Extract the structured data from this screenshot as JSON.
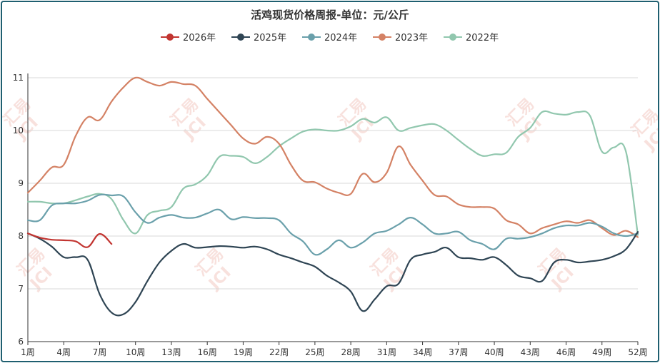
{
  "chart_data": {
    "type": "line",
    "title": "活鸡现货价格周报-单位：元/公斤",
    "ylim": [
      6,
      11
    ],
    "yticks": [
      6,
      7,
      8,
      9,
      10,
      11
    ],
    "xticks": [
      "1周",
      "4周",
      "7周",
      "10周",
      "13周",
      "16周",
      "19周",
      "22周",
      "25周",
      "28周",
      "31周",
      "34周",
      "37周",
      "40周",
      "43周",
      "46周",
      "49周",
      "52周"
    ],
    "x_categories_count": 52,
    "legend_position": "top-center",
    "grid": true,
    "series": [
      {
        "name": "2026年",
        "color": "#c23531",
        "values": [
          8.05,
          7.97,
          7.93,
          7.92,
          7.9,
          7.79,
          8.04,
          7.85
        ]
      },
      {
        "name": "2025年",
        "color": "#2f4554",
        "values": [
          8.05,
          7.95,
          7.8,
          7.6,
          7.6,
          7.55,
          6.9,
          6.55,
          6.52,
          6.75,
          7.15,
          7.5,
          7.72,
          7.85,
          7.78,
          7.79,
          7.81,
          7.8,
          7.78,
          7.8,
          7.75,
          7.65,
          7.58,
          7.5,
          7.42,
          7.25,
          7.12,
          6.95,
          6.58,
          6.8,
          7.05,
          7.1,
          7.55,
          7.65,
          7.7,
          7.78,
          7.6,
          7.58,
          7.55,
          7.6,
          7.45,
          7.25,
          7.2,
          7.15,
          7.5,
          7.55,
          7.5,
          7.52,
          7.55,
          7.62,
          7.75,
          8.08
        ]
      },
      {
        "name": "2024年",
        "color": "#6aa0ab",
        "values": [
          8.3,
          8.3,
          8.58,
          8.62,
          8.62,
          8.67,
          8.78,
          8.77,
          8.75,
          8.45,
          8.25,
          8.35,
          8.4,
          8.35,
          8.35,
          8.43,
          8.5,
          8.32,
          8.36,
          8.34,
          8.34,
          8.3,
          8.05,
          7.9,
          7.65,
          7.75,
          7.92,
          7.78,
          7.88,
          8.05,
          8.1,
          8.22,
          8.35,
          8.22,
          8.05,
          8.05,
          8.08,
          7.92,
          7.85,
          7.75,
          7.95,
          7.95,
          7.98,
          8.05,
          8.15,
          8.2,
          8.2,
          8.25,
          8.18,
          8.05,
          8.0,
          8.05
        ]
      },
      {
        "name": "2023年",
        "color": "#d48265",
        "values": [
          8.82,
          9.05,
          9.3,
          9.35,
          9.9,
          10.25,
          10.2,
          10.55,
          10.82,
          11.0,
          10.92,
          10.85,
          10.92,
          10.88,
          10.85,
          10.6,
          10.35,
          10.1,
          9.85,
          9.75,
          9.88,
          9.75,
          9.35,
          9.05,
          9.02,
          8.9,
          8.82,
          8.8,
          9.18,
          9.02,
          9.2,
          9.7,
          9.35,
          9.05,
          8.78,
          8.75,
          8.6,
          8.55,
          8.55,
          8.52,
          8.3,
          8.22,
          8.05,
          8.15,
          8.22,
          8.28,
          8.25,
          8.3,
          8.15,
          8.02,
          8.1,
          7.98
        ]
      },
      {
        "name": "2022年",
        "color": "#91c7ae",
        "values": [
          8.65,
          8.65,
          8.62,
          8.62,
          8.68,
          8.75,
          8.8,
          8.7,
          8.3,
          8.05,
          8.4,
          8.48,
          8.55,
          8.9,
          8.98,
          9.15,
          9.5,
          9.52,
          9.5,
          9.38,
          9.5,
          9.7,
          9.85,
          9.98,
          10.02,
          10.0,
          10.0,
          10.08,
          10.22,
          10.15,
          10.25,
          10.0,
          10.05,
          10.1,
          10.12,
          10.0,
          9.82,
          9.65,
          9.52,
          9.55,
          9.58,
          9.88,
          10.05,
          10.35,
          10.32,
          10.3,
          10.35,
          10.28,
          9.6,
          9.68,
          9.6,
          8.02
        ]
      }
    ]
  },
  "watermark": {
    "brand_cn": "汇易",
    "brand_en": "JCI"
  }
}
